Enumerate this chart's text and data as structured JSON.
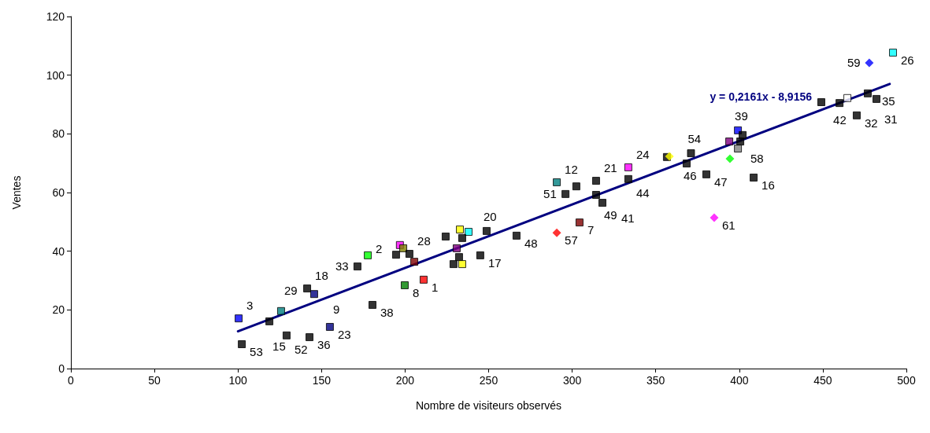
{
  "chart_data": {
    "type": "scatter",
    "xlabel": "Nombre de visiteurs observés",
    "ylabel": "Ventes",
    "xlim": [
      0,
      500
    ],
    "xticks": [
      0,
      50,
      100,
      150,
      200,
      250,
      300,
      350,
      400,
      450,
      500
    ],
    "ylim": [
      0,
      120
    ],
    "yticks": [
      0,
      20,
      40,
      60,
      80,
      100,
      120
    ],
    "grid": false,
    "series": [
      {
        "marker": "square",
        "x": [
          100.4,
          102.3,
          118.8,
          125.8,
          141.4,
          145.6,
          129.1,
          142.8,
          155.0,
          180.5,
          199.8,
          211.1,
          171.5,
          177.7,
          194.6,
          196.9,
          198.9,
          202.6,
          205.5,
          224.3,
          230.9,
          232.3,
          229.0,
          234.2,
          232.8,
          238.0,
          234.2,
          248.8,
          245.0,
          266.7,
          290.8,
          296.0,
          302.5,
          314.3,
          314.3,
          318.1,
          333.6,
          333.6,
          304.4,
          356.7,
          371.1,
          368.5,
          380.3,
          408.6,
          394.0,
          399.2,
          402.0,
          399.2,
          400.6,
          449.1,
          460.0,
          464.7,
          470.3,
          482.1,
          476.9,
          492.0
        ],
        "values": [
          17.1,
          8.3,
          16.1,
          19.6,
          27.3,
          25.4,
          11.3,
          10.7,
          14.2,
          21.7,
          28.4,
          30.3,
          34.8,
          38.6,
          38.8,
          42.1,
          41.0,
          39.1,
          36.4,
          45.0,
          41.0,
          38.0,
          35.6,
          35.6,
          47.4,
          46.6,
          44.5,
          46.9,
          38.6,
          45.3,
          63.5,
          59.5,
          62.1,
          64.0,
          59.2,
          56.5,
          64.6,
          68.6,
          49.8,
          72.1,
          73.4,
          69.9,
          66.2,
          65.1,
          77.4,
          81.2,
          79.6,
          75.0,
          77.4,
          90.8,
          90.5,
          92.2,
          86.3,
          91.9,
          93.8,
          107.7
        ],
        "colors": [
          "#0000ff",
          "#000000",
          "#000000",
          "#008080",
          "#000000",
          "#000080",
          "#000000",
          "#000000",
          "#000080",
          "#000000",
          "#008000",
          "#ff0000",
          "#000000",
          "#00ff00",
          "#000000",
          "#ff00ff",
          "#808000",
          "#000000",
          "#800000",
          "#000000",
          "#800080",
          "#000000",
          "#000000",
          "#ffff00",
          "#ffff00",
          "#00ffff",
          "#000000",
          "#000000",
          "#000000",
          "#000000",
          "#008080",
          "#000000",
          "#000000",
          "#000000",
          "#000000",
          "#000000",
          "#000000",
          "#ff00ff",
          "#800000",
          "#000000",
          "#000000",
          "#000000",
          "#000000",
          "#000000",
          "#800080",
          "#0000ff",
          "#000000",
          "#808080",
          "#000000",
          "#000000",
          "#000000",
          "#ffffff",
          "#000000",
          "#000000",
          "#000000",
          "#00ffff"
        ]
      },
      {
        "type": "scatter",
        "marker": "diamond",
        "x": [
          290.8,
          358.2,
          394.4,
          385.0,
          477.8
        ],
        "values": [
          46.3,
          72.3,
          71.5,
          51.4,
          104.2
        ],
        "colors": [
          "#ff0000",
          "#ffff00",
          "#00ff00",
          "#ff00ff",
          "#0000ff"
        ]
      },
      {
        "type": "line",
        "marker": "none",
        "color": "#000080",
        "x": [
          100,
          490
        ],
        "values": [
          12.7,
          97.0
        ]
      }
    ],
    "annotations": [
      "y = 0,2161x - 8,9156",
      {
        "text": "3",
        "x": 100.4,
        "y": 17.1
      },
      {
        "text": "53",
        "x": 102.3,
        "y": 8.3
      },
      {
        "text": "15",
        "x": 118.8,
        "y": 16.1
      },
      {
        "text": "29",
        "x": 125.8,
        "y": 19.6
      },
      {
        "text": "18",
        "x": 141.4,
        "y": 27.3
      },
      {
        "text": "9",
        "x": 145.6,
        "y": 25.4
      },
      {
        "text": "52",
        "x": 129.1,
        "y": 11.3
      },
      {
        "text": "36",
        "x": 142.8,
        "y": 10.7
      },
      {
        "text": "23",
        "x": 155.0,
        "y": 14.2
      },
      {
        "text": "38",
        "x": 180.5,
        "y": 21.7
      },
      {
        "text": "8",
        "x": 199.8,
        "y": 28.4
      },
      {
        "text": "1",
        "x": 211.1,
        "y": 30.3
      },
      {
        "text": "33",
        "x": 171.5,
        "y": 34.8
      },
      {
        "text": "2",
        "x": 177.7,
        "y": 38.6
      },
      {
        "text": "28",
        "x": 205.5,
        "y": 36.4
      },
      {
        "text": "17",
        "x": 245.0,
        "y": 38.6
      },
      {
        "text": "20",
        "x": 248.8,
        "y": 46.9
      },
      {
        "text": "48",
        "x": 266.7,
        "y": 45.3
      },
      {
        "text": "57",
        "x": 290.8,
        "y": 46.3
      },
      {
        "text": "7",
        "x": 304.4,
        "y": 49.8
      },
      {
        "text": "12",
        "x": 290.8,
        "y": 63.5
      },
      {
        "text": "51",
        "x": 296.0,
        "y": 59.5
      },
      {
        "text": "21",
        "x": 314.3,
        "y": 64.0
      },
      {
        "text": "49",
        "x": 314.3,
        "y": 59.2
      },
      {
        "text": "41",
        "x": 318.1,
        "y": 56.5
      },
      {
        "text": "24",
        "x": 333.6,
        "y": 68.6
      },
      {
        "text": "44",
        "x": 333.6,
        "y": 64.6
      },
      {
        "text": "54",
        "x": 371.1,
        "y": 73.4
      },
      {
        "text": "46",
        "x": 368.5,
        "y": 69.9
      },
      {
        "text": "47",
        "x": 380.3,
        "y": 66.2
      },
      {
        "text": "58",
        "x": 394.4,
        "y": 71.5
      },
      {
        "text": "16",
        "x": 408.6,
        "y": 65.1
      },
      {
        "text": "61",
        "x": 385.0,
        "y": 51.4
      },
      {
        "text": "39",
        "x": 399.2,
        "y": 81.2
      },
      {
        "text": "42",
        "x": 460.0,
        "y": 90.5
      },
      {
        "text": "35",
        "x": 476.9,
        "y": 93.8
      },
      {
        "text": "32",
        "x": 470.3,
        "y": 86.3
      },
      {
        "text": "31",
        "x": 482.1,
        "y": 91.9
      },
      {
        "text": "59",
        "x": 477.8,
        "y": 104.2
      },
      {
        "text": "26",
        "x": 492.0,
        "y": 107.7
      }
    ]
  }
}
